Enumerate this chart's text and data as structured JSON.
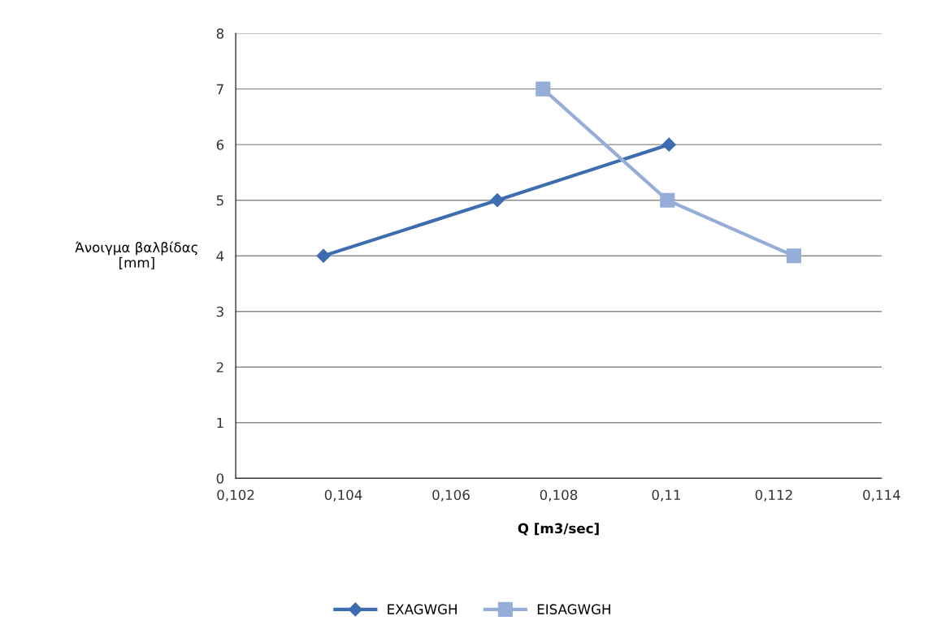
{
  "chart_data": {
    "type": "line",
    "xlabel": "Q [m3/sec]",
    "ylabel": "Άνοιγμα βαλβίδας\n[mm]",
    "series": [
      {
        "name": "EXAGWGH",
        "color": "#3d6db0",
        "marker": "diamond",
        "x": [
          0.10363,
          0.10686,
          0.11005
        ],
        "values": [
          4,
          5,
          6
        ]
      },
      {
        "name": "EISAGWGH",
        "color": "#95add8",
        "marker": "square",
        "x": [
          0.10771,
          0.11002,
          0.11237
        ],
        "values": [
          7,
          5,
          4
        ]
      }
    ],
    "xlim": [
      0.102,
      0.114
    ],
    "xticks": [
      {
        "value": 0.102,
        "label": "0,102"
      },
      {
        "value": 0.104,
        "label": "0,104"
      },
      {
        "value": 0.106,
        "label": "0,106"
      },
      {
        "value": 0.108,
        "label": "0,108"
      },
      {
        "value": 0.11,
        "label": "0,11"
      },
      {
        "value": 0.112,
        "label": "0,112"
      },
      {
        "value": 0.114,
        "label": "0,114"
      }
    ],
    "ylim": [
      0,
      8
    ],
    "yticks": [
      0,
      1,
      2,
      3,
      4,
      5,
      6,
      7,
      8
    ],
    "grid": "y",
    "legend": "bottom",
    "line_style": "solid"
  }
}
